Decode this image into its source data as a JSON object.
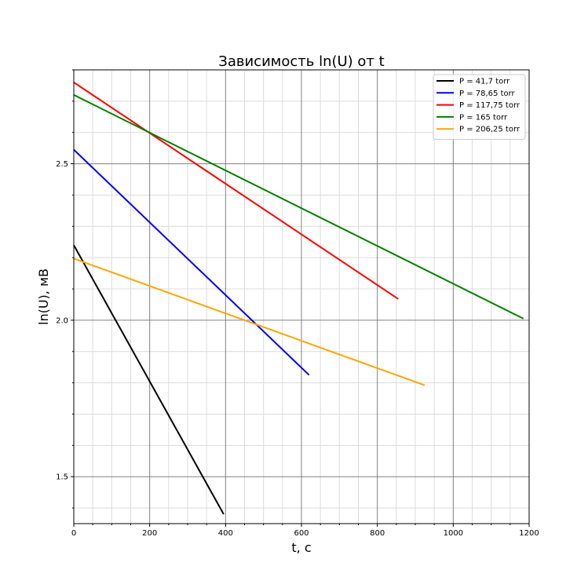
{
  "chart_data": {
    "type": "line",
    "title": "Зависимость ln(U) от t",
    "xlabel": "t, c",
    "ylabel": "ln(U), мВ",
    "xlim": [
      0,
      1200
    ],
    "ylim": [
      1.35,
      2.8
    ],
    "xticks": [
      {
        "value": 0,
        "label": "0"
      },
      {
        "value": 200,
        "label": "200"
      },
      {
        "value": 400,
        "label": "400"
      },
      {
        "value": 600,
        "label": "600"
      },
      {
        "value": 800,
        "label": "800"
      },
      {
        "value": 1000,
        "label": "1000"
      },
      {
        "value": 1200,
        "label": "1200"
      }
    ],
    "yticks": [
      {
        "value": 1.5,
        "label": "1.5"
      },
      {
        "value": 2.0,
        "label": "2.0"
      },
      {
        "value": 2.5,
        "label": "2.5"
      }
    ],
    "grid": true,
    "legend_position": "top-right",
    "series": [
      {
        "name": "P = 41,7 torr",
        "color": "#000000",
        "x": [
          0,
          395
        ],
        "y": [
          2.24,
          1.38
        ]
      },
      {
        "name": "P = 78,65 torr",
        "color": "#0000ff",
        "x": [
          0,
          620
        ],
        "y": [
          2.545,
          1.825
        ]
      },
      {
        "name": "P = 117,75 torr",
        "color": "#ff0000",
        "x": [
          0,
          855
        ],
        "y": [
          2.76,
          2.068
        ]
      },
      {
        "name": "P = 165 torr",
        "color": "#008000",
        "x": [
          0,
          1185
        ],
        "y": [
          2.72,
          2.005
        ]
      },
      {
        "name": "P = 206,25 torr",
        "color": "#ffa500",
        "x": [
          0,
          925
        ],
        "y": [
          2.197,
          1.792
        ]
      }
    ]
  }
}
